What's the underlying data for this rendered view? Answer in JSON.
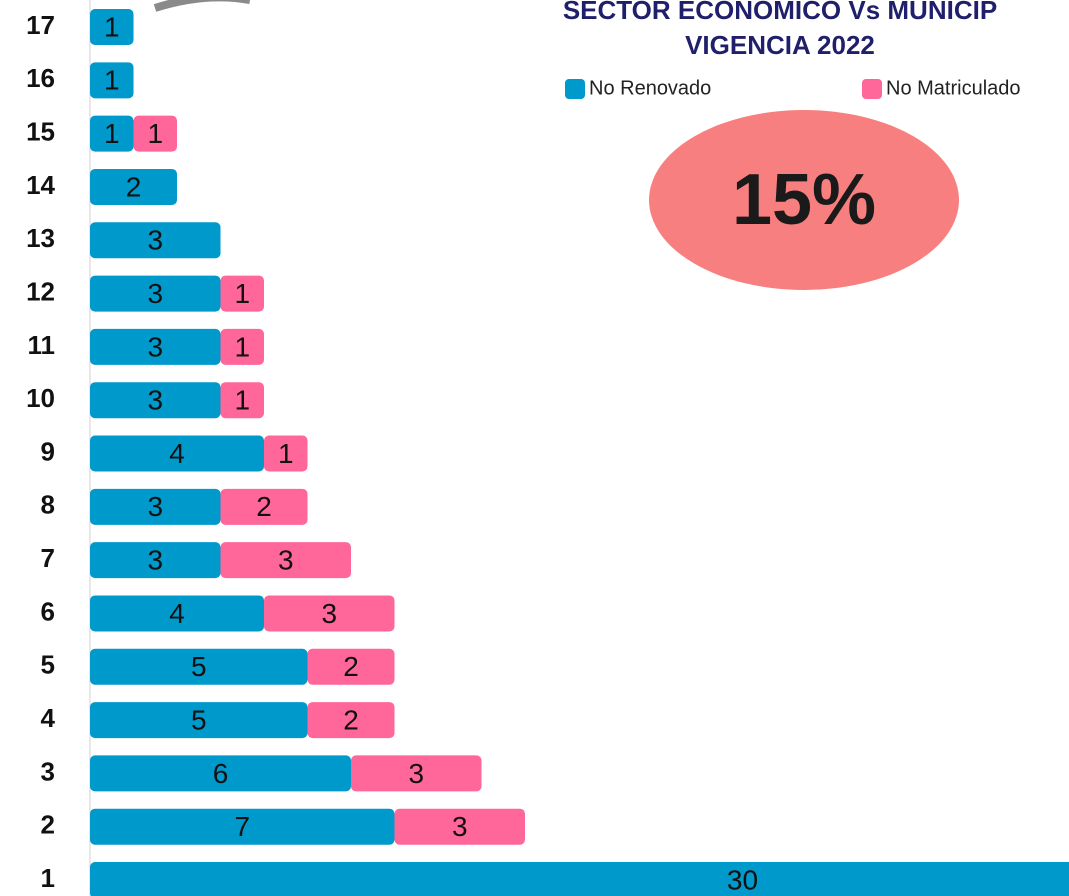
{
  "chart_data": {
    "type": "stacked_bar_horizontal",
    "title": "SECTOR ECONÓMICO Vs MUNICIP",
    "subtitle": "VIGENCIA 2022",
    "annotation": "15%",
    "categories": [
      "1",
      "2",
      "3",
      "4",
      "5",
      "6",
      "7",
      "8",
      "9",
      "10",
      "11",
      "12",
      "13",
      "14",
      "15",
      "16",
      "17"
    ],
    "series": [
      {
        "name": "No Renovado",
        "color": "#0099cc",
        "values": [
          30,
          7,
          6,
          5,
          5,
          4,
          3,
          3,
          4,
          3,
          3,
          3,
          3,
          2,
          1,
          1,
          1
        ]
      },
      {
        "name": "No Matriculado",
        "color": "#ff6699",
        "values": [
          null,
          3,
          3,
          2,
          2,
          3,
          3,
          2,
          1,
          1,
          1,
          1,
          null,
          null,
          1,
          null,
          null
        ]
      }
    ],
    "legend": "top"
  }
}
